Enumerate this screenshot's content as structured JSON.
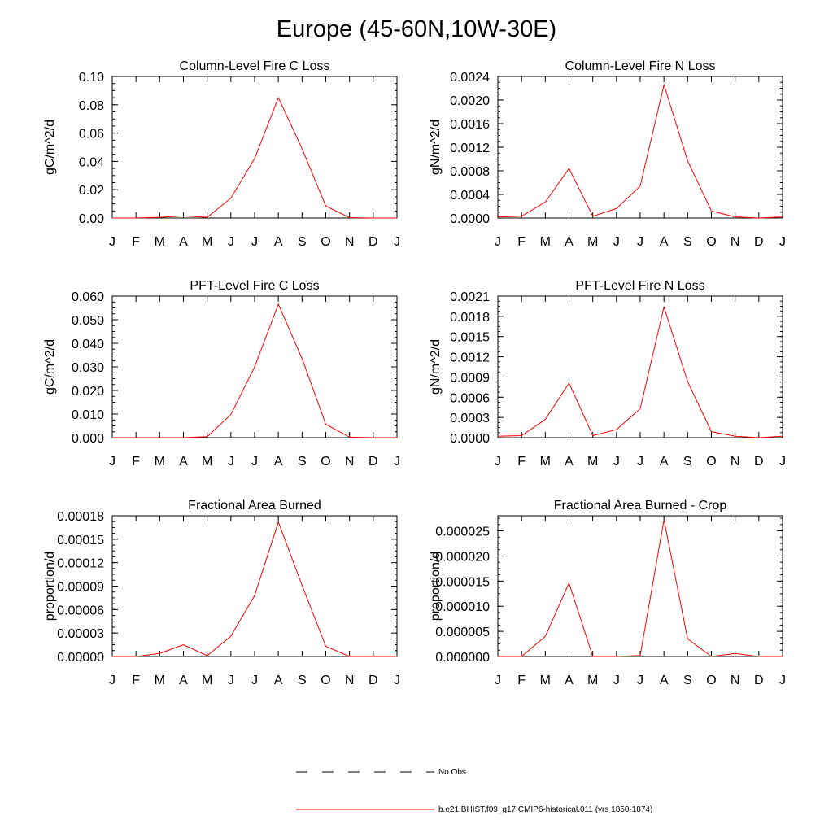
{
  "page": {
    "title": "Europe (45-60N,10W-30E)"
  },
  "legend": {
    "obs_label": "No Obs",
    "model_label": "b.e21.BHIST.f09_g17.CMIP6-historical.011 (yrs 1850-1874)",
    "obs_color": "#000000",
    "model_color": "#ff0000"
  },
  "chart_data": [
    {
      "type": "line",
      "title": "Column-Level Fire C Loss",
      "ylabel": "gC/m^2/d",
      "x": [
        "J",
        "F",
        "M",
        "A",
        "M",
        "J",
        "J",
        "A",
        "S",
        "O",
        "N",
        "D",
        "J"
      ],
      "ylim": [
        0,
        0.1
      ],
      "yticks": [
        "0.00",
        "0.02",
        "0.04",
        "0.06",
        "0.08",
        "0.10"
      ],
      "series": [
        {
          "values": [
            0.0,
            0.0,
            0.0005,
            0.0015,
            0.0005,
            0.014,
            0.042,
            0.085,
            0.049,
            0.0085,
            0.0003,
            0.0,
            0.0
          ]
        }
      ]
    },
    {
      "type": "line",
      "title": "Column-Level Fire N Loss",
      "ylabel": "gN/m^2/d",
      "x": [
        "J",
        "F",
        "M",
        "A",
        "M",
        "J",
        "J",
        "A",
        "S",
        "O",
        "N",
        "D",
        "J"
      ],
      "ylim": [
        0,
        0.0024
      ],
      "yticks": [
        "0.0000",
        "0.0004",
        "0.0008",
        "0.0012",
        "0.0016",
        "0.0020",
        "0.0024"
      ],
      "series": [
        {
          "values": [
            2e-05,
            3e-05,
            0.00027,
            0.00084,
            3e-05,
            0.00016,
            0.00054,
            0.00226,
            0.00097,
            0.00012,
            2e-05,
            0.0,
            2e-05
          ]
        }
      ]
    },
    {
      "type": "line",
      "title": "PFT-Level Fire C Loss",
      "ylabel": "gC/m^2/d",
      "x": [
        "J",
        "F",
        "M",
        "A",
        "M",
        "J",
        "J",
        "A",
        "S",
        "O",
        "N",
        "D",
        "J"
      ],
      "ylim": [
        0,
        0.06
      ],
      "yticks": [
        "0.000",
        "0.010",
        "0.020",
        "0.030",
        "0.040",
        "0.050",
        "0.060"
      ],
      "series": [
        {
          "values": [
            0.0,
            0.0,
            0.0,
            0.0,
            0.0004,
            0.0098,
            0.03,
            0.0566,
            0.0335,
            0.0057,
            0.0002,
            0.0,
            0.0
          ]
        }
      ]
    },
    {
      "type": "line",
      "title": "PFT-Level Fire N Loss",
      "ylabel": "gN/m^2/d",
      "x": [
        "J",
        "F",
        "M",
        "A",
        "M",
        "J",
        "J",
        "A",
        "S",
        "O",
        "N",
        "D",
        "J"
      ],
      "ylim": [
        0,
        0.0021
      ],
      "yticks": [
        "0.0000",
        "0.0003",
        "0.0006",
        "0.0009",
        "0.0012",
        "0.0015",
        "0.0018",
        "0.0021"
      ],
      "series": [
        {
          "values": [
            2e-05,
            3e-05,
            0.00027,
            0.00081,
            3e-05,
            0.00012,
            0.00043,
            0.00194,
            0.00083,
            9e-05,
            2e-05,
            0.0,
            2e-05
          ]
        }
      ]
    },
    {
      "type": "line",
      "title": "Fractional Area Burned",
      "ylabel": "proportion/d",
      "x": [
        "J",
        "F",
        "M",
        "A",
        "M",
        "J",
        "J",
        "A",
        "S",
        "O",
        "N",
        "D",
        "J"
      ],
      "ylim": [
        0,
        0.00018
      ],
      "yticks": [
        "0.00000",
        "0.00003",
        "0.00006",
        "0.00009",
        "0.00012",
        "0.00015",
        "0.00018"
      ],
      "series": [
        {
          "values": [
            0.0,
            0.0,
            4e-06,
            1.5e-05,
            1e-06,
            2.6e-05,
            7.8e-05,
            0.000172,
            9.1e-05,
            1.3e-05,
            0.0,
            0.0,
            0.0
          ]
        }
      ]
    },
    {
      "type": "line",
      "title": "Fractional Area Burned - Crop",
      "ylabel": "proportion/d",
      "x": [
        "J",
        "F",
        "M",
        "A",
        "M",
        "J",
        "J",
        "A",
        "S",
        "O",
        "N",
        "D",
        "J"
      ],
      "ylim": [
        0,
        2.8e-05
      ],
      "yticks": [
        "0.000000",
        "0.000005",
        "0.000010",
        "0.000015",
        "0.000020",
        "0.000025"
      ],
      "series": [
        {
          "values": [
            0.0,
            0.0,
            4e-06,
            1.46e-05,
            0.0,
            0.0,
            2e-07,
            2.72e-05,
            3.5e-06,
            0.0,
            6e-07,
            0.0,
            0.0
          ]
        }
      ]
    }
  ]
}
